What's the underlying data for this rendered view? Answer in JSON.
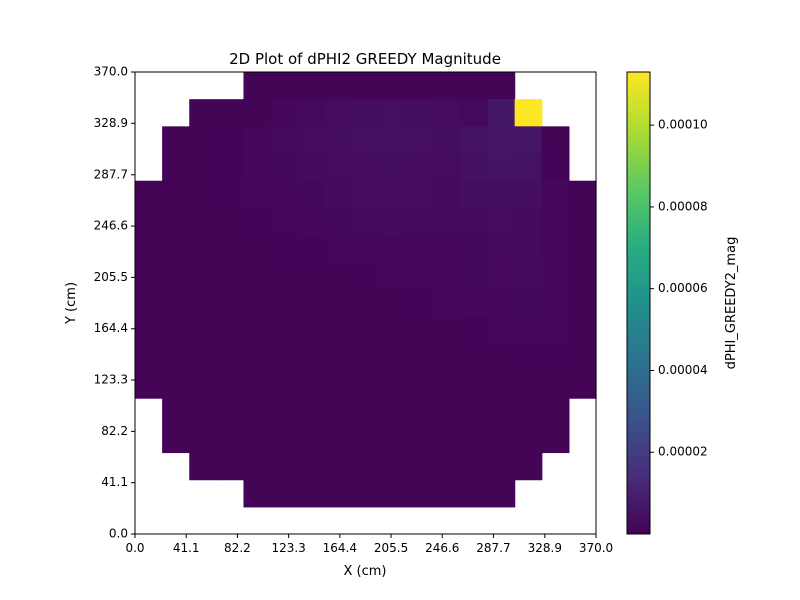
{
  "chart_data": {
    "type": "heatmap",
    "title": "2D Plot of dPHI2 GREEDY Magnitude",
    "xlabel": "X (cm)",
    "ylabel": "Y (cm)",
    "colorbar_label": "dPHI_GREEDY2_mag",
    "colormap": "viridis",
    "xlim": [
      0.0,
      370.0
    ],
    "ylim": [
      0.0,
      370.0
    ],
    "xticks": [
      "0.0",
      "41.1",
      "82.2",
      "123.3",
      "164.4",
      "205.5",
      "246.6",
      "287.7",
      "328.9",
      "370.0"
    ],
    "yticks": [
      "0.0",
      "41.1",
      "82.2",
      "123.3",
      "164.4",
      "205.5",
      "246.6",
      "287.7",
      "328.9",
      "370.0"
    ],
    "colorbar_ticks": [
      "0.00002",
      "0.00004",
      "0.00006",
      "0.00008",
      "0.00010"
    ],
    "colorbar_tick_values": [
      2e-05,
      4e-05,
      6e-05,
      8e-05,
      0.0001
    ],
    "value_range": [
      0.0,
      0.000113
    ],
    "grid": false,
    "legend": "colorbar-right",
    "grid_size": 17,
    "row_order": "top-to-bottom",
    "values": [
      [
        null,
        null,
        null,
        null,
        1.2e-06,
        1.2e-06,
        1.2e-06,
        1.2e-06,
        1.2e-06,
        1.2e-06,
        1.2e-06,
        1.2e-06,
        1.2e-06,
        1.2e-06,
        null,
        null,
        null
      ],
      [
        null,
        null,
        1.2e-06,
        1.2e-06,
        1.2e-06,
        1.8e-06,
        2.5e-06,
        3.2e-06,
        3.8e-06,
        4.2e-06,
        4e-06,
        3.5e-06,
        2.5e-06,
        7e-06,
        0.000113,
        null,
        null
      ],
      [
        null,
        1.2e-06,
        1.2e-06,
        1.4e-06,
        1.8e-06,
        2.5e-06,
        3.2e-06,
        3.8e-06,
        4.2e-06,
        4.4e-06,
        4.2e-06,
        3.8e-06,
        5e-06,
        6.5e-06,
        6.5e-06,
        1.2e-06,
        null
      ],
      [
        null,
        1.2e-06,
        1.2e-06,
        1.4e-06,
        1.8e-06,
        2.2e-06,
        2.8e-06,
        3.2e-06,
        3.6e-06,
        3.8e-06,
        3.6e-06,
        3.4e-06,
        4.8e-06,
        6e-06,
        5e-06,
        1.4e-06,
        null
      ],
      [
        1.2e-06,
        1.2e-06,
        1.2e-06,
        1.3e-06,
        1.6e-06,
        1.8e-06,
        2.2e-06,
        2.8e-06,
        3.2e-06,
        3.4e-06,
        3.2e-06,
        3e-06,
        4e-06,
        4e-06,
        4e-06,
        2e-06,
        1.2e-06
      ],
      [
        1.2e-06,
        1.2e-06,
        1.2e-06,
        1.2e-06,
        1.4e-06,
        1.6e-06,
        1.8e-06,
        2.2e-06,
        2.6e-06,
        2.8e-06,
        2.6e-06,
        2.6e-06,
        2.6e-06,
        3.2e-06,
        3e-06,
        2e-06,
        1.2e-06
      ],
      [
        1.2e-06,
        1.2e-06,
        1.2e-06,
        1.2e-06,
        1.2e-06,
        1.4e-06,
        1.4e-06,
        1.6e-06,
        1.8e-06,
        2e-06,
        2e-06,
        2e-06,
        2.2e-06,
        2.6e-06,
        2.8e-06,
        1.8e-06,
        1.2e-06
      ],
      [
        1.2e-06,
        1.2e-06,
        1.2e-06,
        1.2e-06,
        1.2e-06,
        1.2e-06,
        1.2e-06,
        1.2e-06,
        1.4e-06,
        1.6e-06,
        1.8e-06,
        2e-06,
        2.2e-06,
        2.4e-06,
        2.6e-06,
        1.8e-06,
        1.2e-06
      ],
      [
        1.2e-06,
        1.2e-06,
        1.2e-06,
        1.2e-06,
        1.2e-06,
        1.2e-06,
        1.2e-06,
        1.2e-06,
        1.2e-06,
        1.2e-06,
        1.4e-06,
        1.6e-06,
        1.8e-06,
        2e-06,
        2.2e-06,
        1.8e-06,
        1.2e-06
      ],
      [
        1.2e-06,
        1.2e-06,
        1.2e-06,
        1.2e-06,
        1.2e-06,
        1.2e-06,
        1.2e-06,
        1.2e-06,
        1.2e-06,
        1.2e-06,
        1.2e-06,
        1.2e-06,
        1.4e-06,
        1.6e-06,
        1.8e-06,
        1.6e-06,
        1.2e-06
      ],
      [
        1.2e-06,
        1.2e-06,
        1.2e-06,
        1.2e-06,
        1.2e-06,
        1.2e-06,
        1.2e-06,
        1.2e-06,
        1.2e-06,
        1.2e-06,
        1.2e-06,
        1.2e-06,
        1.2e-06,
        1.2e-06,
        1.4e-06,
        1.4e-06,
        1.2e-06
      ],
      [
        1.2e-06,
        1.2e-06,
        1.2e-06,
        1.2e-06,
        1.2e-06,
        1.2e-06,
        1.2e-06,
        1.2e-06,
        1.2e-06,
        1.2e-06,
        1.2e-06,
        1.2e-06,
        1.2e-06,
        1.2e-06,
        1.2e-06,
        1.2e-06,
        1.2e-06
      ],
      [
        null,
        1.2e-06,
        1.2e-06,
        1.2e-06,
        1.2e-06,
        1.2e-06,
        1.2e-06,
        1.2e-06,
        1.2e-06,
        1.2e-06,
        1.2e-06,
        1.2e-06,
        1.2e-06,
        1.2e-06,
        1.2e-06,
        1.2e-06,
        null
      ],
      [
        null,
        1.2e-06,
        1.2e-06,
        1.2e-06,
        1.2e-06,
        1.2e-06,
        1.2e-06,
        1.2e-06,
        1.2e-06,
        1.2e-06,
        1.2e-06,
        1.2e-06,
        1.2e-06,
        1.2e-06,
        1.2e-06,
        1.2e-06,
        null
      ],
      [
        null,
        null,
        1.2e-06,
        1.2e-06,
        1.2e-06,
        1.2e-06,
        1.2e-06,
        1.2e-06,
        1.2e-06,
        1.2e-06,
        1.2e-06,
        1.2e-06,
        1.2e-06,
        1.2e-06,
        1.2e-06,
        null,
        null
      ],
      [
        null,
        null,
        null,
        null,
        1.2e-06,
        1.2e-06,
        1.2e-06,
        1.2e-06,
        1.2e-06,
        1.2e-06,
        1.2e-06,
        1.2e-06,
        1.2e-06,
        1.2e-06,
        null,
        null,
        null
      ],
      [
        null,
        null,
        null,
        null,
        null,
        null,
        null,
        null,
        null,
        null,
        null,
        null,
        null,
        null,
        null,
        null,
        null
      ]
    ]
  }
}
